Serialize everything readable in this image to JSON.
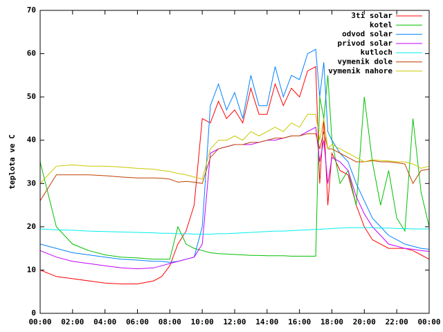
{
  "chart_data": {
    "type": "line",
    "ylabel": "teplota ve C",
    "x": [
      0,
      1,
      2,
      3,
      4,
      5,
      6,
      7,
      7.5,
      8,
      8.5,
      9,
      9.5,
      10,
      10.5,
      11,
      11.5,
      12,
      12.5,
      13,
      13.5,
      14,
      14.5,
      15,
      15.5,
      16,
      16.5,
      17,
      17.25,
      17.5,
      17.75,
      18,
      18.5,
      19,
      19.5,
      20,
      20.5,
      21,
      21.5,
      22,
      22.5,
      23,
      23.5,
      24
    ],
    "series": [
      {
        "name": "3ti solar",
        "color": "#ff0000",
        "values": [
          10,
          8.5,
          8,
          7.5,
          7,
          6.8,
          6.8,
          7.5,
          8.5,
          11,
          16,
          19,
          25,
          45,
          44,
          49,
          45,
          47,
          44,
          52,
          46,
          46,
          53,
          48,
          52,
          50,
          56,
          57,
          30,
          45,
          25,
          37,
          33,
          32,
          25,
          20,
          17,
          16,
          15,
          15,
          15,
          14.5,
          13.5,
          12.5
        ]
      },
      {
        "name": "kotel",
        "color": "#00c000",
        "values": [
          35,
          20,
          16,
          14.5,
          13.5,
          13,
          12.8,
          12.5,
          12.5,
          12.5,
          20,
          16,
          15,
          14.5,
          14,
          13.8,
          13.7,
          13.6,
          13.5,
          13.4,
          13.4,
          13.3,
          13.3,
          13.3,
          13.2,
          13.2,
          13.2,
          13.2,
          50,
          45,
          55,
          40,
          30,
          33,
          25,
          50,
          35,
          25,
          33,
          22,
          19,
          45,
          28,
          20
        ]
      },
      {
        "name": "odvod solar",
        "color": "#0080ff",
        "values": [
          16,
          15,
          14,
          13.5,
          13,
          12.5,
          12.3,
          12,
          12,
          11.8,
          12,
          12.5,
          13,
          20,
          48,
          53,
          47,
          51,
          45,
          55,
          48,
          48,
          57,
          50,
          55,
          54,
          60,
          61,
          50,
          58,
          42,
          40,
          37,
          35,
          30,
          26,
          22,
          20,
          18,
          17,
          16,
          15.5,
          15,
          14.8
        ]
      },
      {
        "name": "privod solar",
        "color": "#c000ff",
        "values": [
          14.5,
          13,
          12,
          11.5,
          11,
          10.5,
          10.3,
          10.5,
          11,
          11.5,
          12,
          12.5,
          13,
          16,
          37,
          38,
          38.5,
          39,
          39,
          39,
          39.5,
          40,
          40,
          40.5,
          41,
          41,
          42,
          43,
          35,
          40,
          30,
          36,
          35,
          33,
          27,
          23,
          20,
          18,
          16,
          15.5,
          15,
          14.8,
          14.5,
          14.3
        ]
      },
      {
        "name": "kutloch",
        "color": "#00eeee",
        "values": [
          19.5,
          19.3,
          19.2,
          19,
          18.9,
          18.8,
          18.7,
          18.6,
          18.5,
          18.5,
          18.4,
          18.4,
          18.3,
          18.3,
          18.3,
          18.4,
          18.4,
          18.5,
          18.6,
          18.7,
          18.8,
          18.9,
          19,
          19,
          19.1,
          19.2,
          19.3,
          19.4,
          19.4,
          19.5,
          19.5,
          19.6,
          19.7,
          19.8,
          19.8,
          19.8,
          19.8,
          19.7,
          19.7,
          19.6,
          19.6,
          19.5,
          19.5,
          19.5
        ]
      },
      {
        "name": "vymenik dole",
        "color": "#c04000",
        "values": [
          26,
          32,
          32,
          32,
          31.8,
          31.5,
          31.3,
          31.3,
          31.2,
          31,
          30.3,
          30.5,
          30.3,
          30,
          36,
          38,
          38.5,
          39,
          39,
          39.5,
          39.5,
          40,
          40.5,
          40.5,
          41,
          41,
          41.5,
          41.5,
          38,
          42,
          38,
          38,
          37,
          36,
          35,
          35,
          35.3,
          35,
          35,
          34.8,
          34.5,
          30,
          33,
          33.3
        ]
      },
      {
        "name": "vymenik nahore",
        "color": "#c8c800",
        "values": [
          30,
          34,
          34.3,
          34,
          34,
          33.8,
          33.5,
          33.3,
          33,
          32.8,
          32.3,
          32,
          31.5,
          31,
          38,
          40,
          40,
          41,
          40,
          42,
          41,
          42,
          43,
          42,
          44,
          43,
          46,
          46,
          40,
          45,
          38,
          39,
          38,
          37,
          36,
          35,
          35.5,
          35.3,
          35.2,
          35,
          35,
          34.5,
          33.5,
          34
        ]
      }
    ],
    "xlim": [
      0,
      24
    ],
    "xticks": [
      {
        "value": 0,
        "label": "00:00"
      },
      {
        "value": 2,
        "label": "02:00"
      },
      {
        "value": 4,
        "label": "04:00"
      },
      {
        "value": 6,
        "label": "06:00"
      },
      {
        "value": 8,
        "label": "08:00"
      },
      {
        "value": 10,
        "label": "10:00"
      },
      {
        "value": 12,
        "label": "12:00"
      },
      {
        "value": 14,
        "label": "14:00"
      },
      {
        "value": 16,
        "label": "16:00"
      },
      {
        "value": 18,
        "label": "18:00"
      },
      {
        "value": 20,
        "label": "20:00"
      },
      {
        "value": 22,
        "label": "22:00"
      },
      {
        "value": 24,
        "label": "00:00"
      }
    ],
    "ylim": [
      0,
      70
    ],
    "yticks": [
      0,
      10,
      20,
      30,
      40,
      50,
      60,
      70
    ],
    "legend": "top-right"
  }
}
